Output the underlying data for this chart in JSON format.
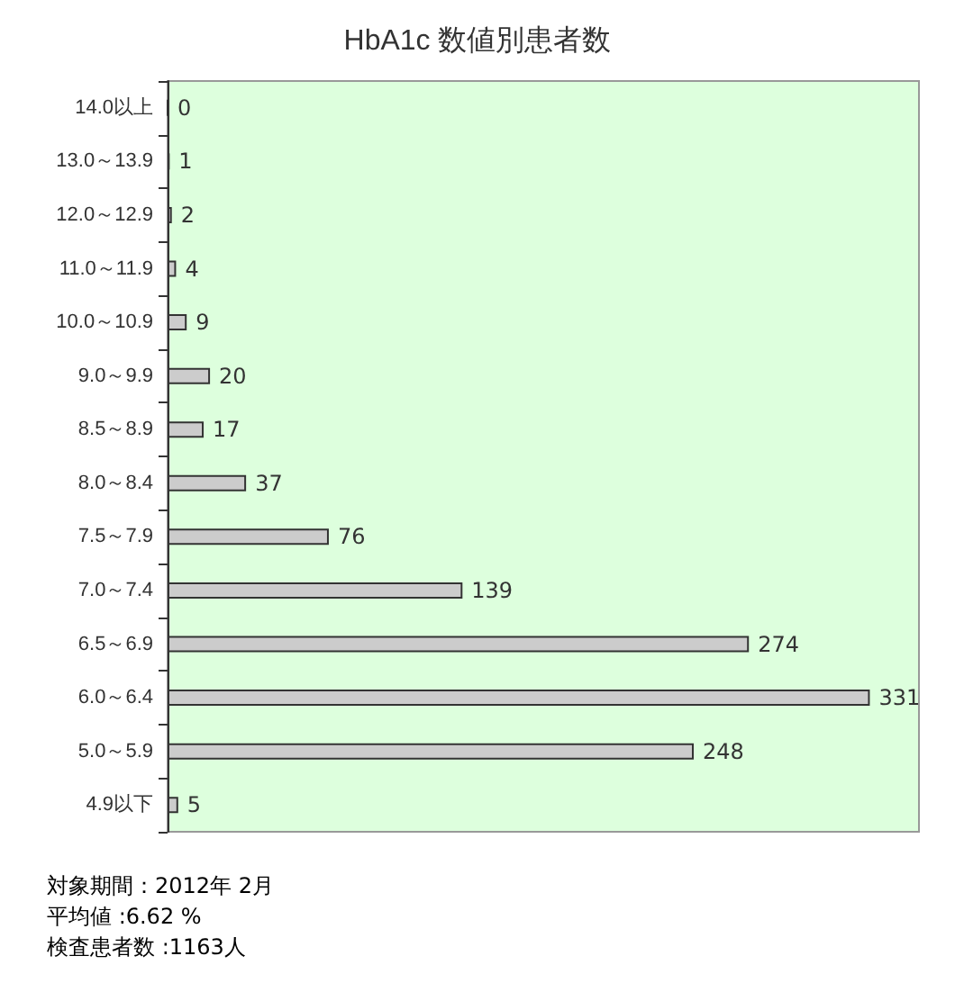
{
  "chart_data": {
    "type": "bar",
    "orientation": "horizontal",
    "title": "HbA1c 数値別患者数",
    "categories": [
      "14.0以上",
      "13.0～13.9",
      "12.0～12.9",
      "11.0～11.9",
      "10.0～10.9",
      "9.0～9.9",
      "8.5～8.9",
      "8.0～8.4",
      "7.5～7.9",
      "7.0～7.4",
      "6.5～6.9",
      "6.0～6.4",
      "5.0～5.9",
      "4.9以下"
    ],
    "values": [
      0,
      1,
      2,
      4,
      9,
      20,
      17,
      37,
      76,
      139,
      274,
      331,
      248,
      5
    ],
    "color": "#cccccc",
    "data_labels": true,
    "annotations": [
      "対象期間：2012年 2月",
      "平均値 :6.62 %",
      "検査患者数 :1163人"
    ]
  }
}
